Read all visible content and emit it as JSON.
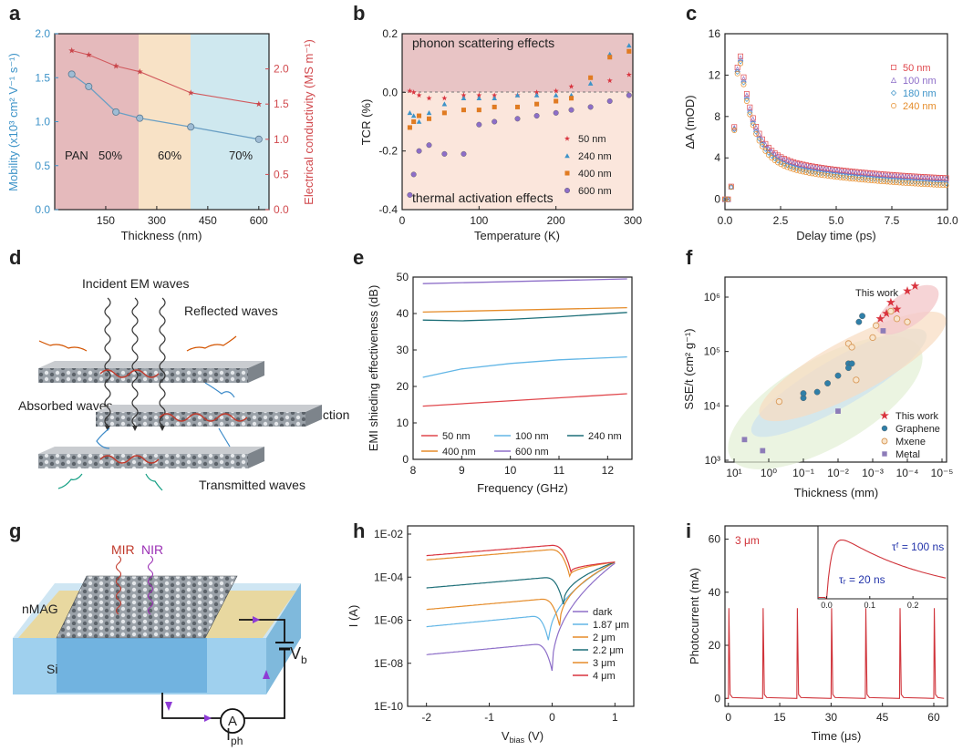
{
  "colors": {
    "red": "#e0474c",
    "blue": "#3d93c8",
    "teal": "#1d6f78",
    "orange": "#e58c2a",
    "purple": "#8d6ec8",
    "lightblue": "#62b6e6",
    "navy": "#276b8e"
  },
  "chart_data": [
    {
      "panel": "a",
      "type": "line",
      "xlabel": "Thickness (nm)",
      "ylabel": "Mobility (x10³ cm² V⁻¹ s⁻¹)",
      "ylabel2": "Electrical conductivity (MS m⁻¹)",
      "xlim": [
        0,
        630
      ],
      "ylim": [
        0,
        2.0
      ],
      "ylim2": [
        0,
        2.5
      ],
      "xticks": [
        "150",
        "300",
        "450",
        "600"
      ],
      "yticks": [
        "0.0",
        "0.5",
        "1.0",
        "1.5",
        "2.0"
      ],
      "yticks2": [
        "0.0",
        "0.5",
        "1.0",
        "1.5",
        "2.0"
      ],
      "regions": [
        {
          "label": "PAN",
          "x": [
            0,
            255
          ],
          "color": "#e2b7b9"
        },
        {
          "label": "50%",
          "x": [
            0,
            255
          ],
          "color": "#e2b7b9"
        },
        {
          "label": "60%",
          "x": [
            255,
            405
          ],
          "color": "#f6dfc2"
        },
        {
          "label": "70%",
          "x": [
            405,
            630
          ],
          "color": "#cde7ee"
        }
      ],
      "series": [
        {
          "values_x": [
            50,
            100,
            180,
            250,
            400,
            600
          ],
          "values_y": [
            1.54,
            1.4,
            1.11,
            1.04,
            0.94,
            0.8
          ],
          "axis": "left",
          "color": "#6a9fc4"
        },
        {
          "values_x": [
            50,
            100,
            180,
            250,
            400,
            600
          ],
          "values_y": [
            2.26,
            2.2,
            2.04,
            1.96,
            1.66,
            1.5
          ],
          "axis": "right",
          "color": "#d15a5e"
        }
      ]
    },
    {
      "panel": "b",
      "type": "scatter",
      "xlabel": "Temperature (K)",
      "ylabel": "TCR (%)",
      "xlim": [
        0,
        300
      ],
      "ylim": [
        -0.4,
        0.2
      ],
      "xticks": [
        "0",
        "100",
        "200",
        "300"
      ],
      "yticks": [
        "-0.4",
        "-0.2",
        "0.0",
        "0.2"
      ],
      "annotations": [
        "phonon scattering effects",
        "thermal activation effects"
      ],
      "series": [
        {
          "name": "50 nm",
          "marker": "star",
          "x": [
            10,
            15,
            22,
            35,
            55,
            80,
            100,
            120,
            150,
            175,
            200,
            220,
            270,
            295
          ],
          "y": [
            0.005,
            0.0,
            -0.01,
            -0.02,
            -0.02,
            -0.01,
            -0.01,
            -0.01,
            -0.01,
            0.0,
            0.005,
            0.02,
            0.04,
            0.06
          ]
        },
        {
          "name": "240 nm",
          "marker": "triangle",
          "x": [
            10,
            15,
            22,
            35,
            55,
            80,
            100,
            120,
            150,
            175,
            200,
            220,
            245,
            270,
            295
          ],
          "y": [
            -0.07,
            -0.08,
            -0.1,
            -0.07,
            -0.04,
            -0.02,
            -0.02,
            -0.02,
            -0.01,
            -0.01,
            -0.01,
            -0.01,
            0.03,
            0.13,
            0.16
          ]
        },
        {
          "name": "400 nm",
          "marker": "square",
          "x": [
            10,
            15,
            22,
            35,
            55,
            80,
            100,
            120,
            150,
            175,
            200,
            220,
            245,
            270,
            295
          ],
          "y": [
            -0.12,
            -0.1,
            -0.08,
            -0.09,
            -0.07,
            -0.06,
            -0.06,
            -0.05,
            -0.05,
            -0.04,
            -0.03,
            -0.02,
            0.05,
            0.12,
            0.14
          ]
        },
        {
          "name": "600 nm",
          "marker": "circle",
          "x": [
            10,
            15,
            22,
            35,
            55,
            80,
            100,
            120,
            150,
            175,
            200,
            220,
            245,
            270,
            295
          ],
          "y": [
            -0.35,
            -0.28,
            -0.2,
            -0.18,
            -0.21,
            -0.21,
            -0.11,
            -0.1,
            -0.09,
            -0.08,
            -0.07,
            -0.06,
            -0.05,
            -0.03,
            -0.01
          ]
        }
      ]
    },
    {
      "panel": "c",
      "type": "scatter",
      "xlabel": "Delay time (ps)",
      "ylabel": "ΔA (mOD)",
      "xlim": [
        0,
        10
      ],
      "ylim": [
        -1,
        16
      ],
      "xticks": [
        "0.0",
        "2.5",
        "5.0",
        "7.5",
        "10.0"
      ],
      "yticks": [
        "0",
        "4",
        "8",
        "12",
        "16"
      ],
      "series": [
        {
          "name": "50 nm",
          "marker": "square",
          "peak": 15.2,
          "tail": 1.5
        },
        {
          "name": "100 nm",
          "marker": "triangle",
          "peak": 15.0,
          "tail": 1.4
        },
        {
          "name": "180 nm",
          "marker": "diamond",
          "peak": 14.7,
          "tail": 1.0
        },
        {
          "name": "240 nm",
          "marker": "circle",
          "peak": 14.5,
          "tail": 0.8
        }
      ]
    },
    {
      "panel": "e",
      "type": "line",
      "xlabel": "Frequency (GHz)",
      "ylabel": "EMI shieding effectiveness (dB)",
      "xlim": [
        8,
        12.5
      ],
      "ylim": [
        0,
        50
      ],
      "xticks": [
        "8",
        "9",
        "10",
        "11",
        "12"
      ],
      "yticks": [
        "0",
        "10",
        "20",
        "30",
        "40",
        "50"
      ],
      "series": [
        {
          "name": "50 nm",
          "x": [
            8.2,
            12.4
          ],
          "y": [
            14.6,
            18.0
          ]
        },
        {
          "name": "100 nm",
          "x": [
            8.2,
            9,
            10,
            11,
            12.4
          ],
          "y": [
            22.5,
            24.8,
            26.3,
            27.3,
            28.1
          ]
        },
        {
          "name": "240 nm",
          "x": [
            8.2,
            9,
            10,
            11,
            12.4
          ],
          "y": [
            38.2,
            38.0,
            38.4,
            39.1,
            40.3
          ]
        },
        {
          "name": "400 nm",
          "x": [
            8.2,
            12.4
          ],
          "y": [
            40.4,
            41.6
          ]
        },
        {
          "name": "600 nm",
          "x": [
            8.2,
            12.4
          ],
          "y": [
            48.2,
            49.5
          ]
        }
      ]
    },
    {
      "panel": "f",
      "type": "scatter",
      "xlabel": "Thickness (mm)",
      "ylabel": "SSE/t (cm² g⁻¹)",
      "xscale": "log-reversed",
      "yscale": "log",
      "xticks": [
        "10¹",
        "10⁰",
        "10⁻¹",
        "10⁻²",
        "10⁻³",
        "10⁻⁴",
        "10⁻⁵"
      ],
      "yticks": [
        "10³",
        "10⁴",
        "10⁵",
        "10⁶"
      ],
      "annotation": "This work",
      "series": [
        {
          "name": "This work",
          "marker": "star",
          "x": [
            0.0006,
            0.0004,
            0.0003,
            0.0002,
            0.0001,
            6e-05
          ],
          "y": [
            400000.0,
            500000.0,
            800000.0,
            600000.0,
            1300000.0,
            1600000.0
          ]
        },
        {
          "name": "Graphene",
          "marker": "circle",
          "x": [
            0.1,
            0.1,
            0.04,
            0.02,
            0.01,
            0.005,
            0.005,
            0.004,
            0.0025,
            0.002
          ],
          "y": [
            14000.0,
            17000.0,
            18000.0,
            26000.0,
            36000.0,
            60000.0,
            50000.0,
            60000.0,
            350000.0,
            450000.0
          ]
        },
        {
          "name": "Mxene",
          "marker": "circle-open",
          "x": [
            0.5,
            0.005,
            0.004,
            0.003,
            0.001,
            0.0008,
            0.0003,
            0.0002,
            0.0001
          ],
          "y": [
            12000.0,
            140000.0,
            120000.0,
            30000.0,
            180000.0,
            300000.0,
            550000.0,
            400000.0,
            350000.0
          ]
        },
        {
          "name": "Metal",
          "marker": "square",
          "x": [
            5,
            1.5,
            0.01,
            0.0005
          ],
          "y": [
            2400.0,
            1500.0,
            8000.0,
            240000.0
          ]
        }
      ]
    },
    {
      "panel": "h",
      "type": "line",
      "xlabel": "V",
      "xlabel_sub": "bias",
      "xlabel_unit": " (V)",
      "ylabel": "I (A)",
      "yscale": "log",
      "xlim": [
        -2.3,
        1.3
      ],
      "xticks": [
        "-2",
        "-1",
        "0",
        "1"
      ],
      "yticks": [
        "1E-10",
        "1E-08",
        "1E-06",
        "1E-04",
        "1E-02"
      ],
      "series": [
        {
          "name": "dark",
          "minV": 0.0,
          "left": -7.6,
          "right": -3.35
        },
        {
          "name": "1.87 μm",
          "minV": -0.05,
          "left": -6.3,
          "right": -3.3
        },
        {
          "name": "2 μm",
          "minV": 0.12,
          "left": -5.5,
          "right": -3.3
        },
        {
          "name": "2.2 μm",
          "minV": 0.18,
          "left": -4.5,
          "right": -3.3
        },
        {
          "name": "3 μm",
          "minV": 0.28,
          "left": -3.2,
          "right": -3.3
        },
        {
          "name": "4 μm",
          "minV": 0.3,
          "left": -3.0,
          "right": -3.3
        }
      ]
    },
    {
      "panel": "i",
      "type": "line",
      "xlabel": "Time (μs)",
      "ylabel": "Photocurrent (mA)",
      "xlim": [
        -1,
        64
      ],
      "ylim": [
        -3,
        65
      ],
      "xticks": [
        "0",
        "15",
        "30",
        "45",
        "60"
      ],
      "yticks": [
        "0",
        "20",
        "40",
        "60"
      ],
      "annotation": "3 μm",
      "pulses": [
        0,
        10,
        20,
        30,
        40,
        50,
        60
      ],
      "peak": 34,
      "inset": {
        "xticks": [
          "0.0",
          "0.1",
          "0.2"
        ],
        "tau_f": "τᶠ = 100 ns",
        "tau_r": "τᵣ = 20 ns"
      }
    }
  ],
  "panels": {
    "a": "a",
    "b": "b",
    "c": "c",
    "d": "d",
    "e": "e",
    "f": "f",
    "g": "g",
    "h": "h",
    "i": "i"
  },
  "diagram_d": {
    "incident": "Incident EM waves",
    "reflected": "Reflected waves",
    "absorbed": "Absorbed waves",
    "internal": "Internal reflection",
    "transmitted": "Transmitted waves"
  },
  "diagram_g": {
    "mir": "MIR",
    "nir": "NIR",
    "nmag": "nMAG",
    "si": "Si",
    "vb": "V",
    "vb_sub": "b",
    "iph": "I",
    "iph_sub": "ph",
    "ammeter": "A"
  }
}
